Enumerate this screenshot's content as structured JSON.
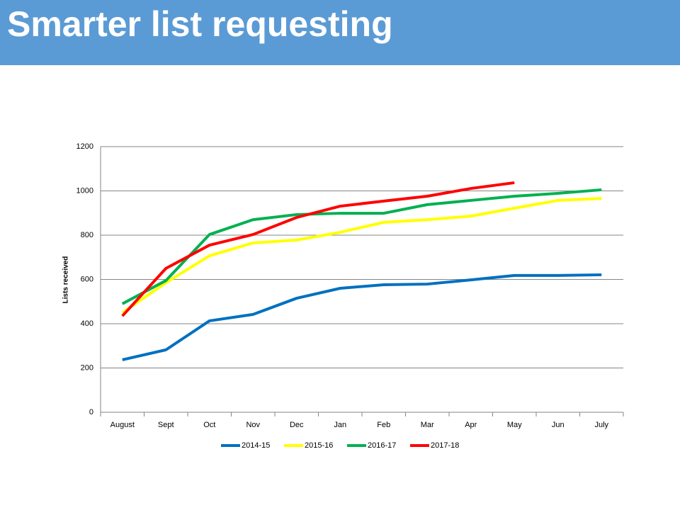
{
  "title": "Smarter list requesting",
  "chart_data": {
    "type": "line",
    "ylabel": "Lists received",
    "categories": [
      "August",
      "Sept",
      "Oct",
      "Nov",
      "Dec",
      "Jan",
      "Feb",
      "Mar",
      "Apr",
      "May",
      "Jun",
      "July"
    ],
    "series": [
      {
        "name": "2014-15",
        "color": "#0070c0",
        "values": [
          237,
          282,
          413,
          442,
          515,
          560,
          576,
          579,
          598,
          618,
          618,
          621
        ]
      },
      {
        "name": "2015-16",
        "color": "#ffff00",
        "values": [
          450,
          585,
          707,
          765,
          778,
          813,
          858,
          870,
          886,
          922,
          957,
          966
        ]
      },
      {
        "name": "2016-17",
        "color": "#00b050",
        "values": [
          490,
          595,
          803,
          870,
          893,
          899,
          899,
          938,
          957,
          976,
          989,
          1005
        ]
      },
      {
        "name": "2017-18",
        "color": "#ff0000",
        "values": [
          435,
          650,
          755,
          803,
          880,
          931,
          954,
          976,
          1011,
          1037,
          null,
          null
        ]
      }
    ],
    "ylim": [
      0,
      1200
    ],
    "yticks": [
      0,
      200,
      400,
      600,
      800,
      1000,
      1200
    ],
    "grid": true,
    "legend": "bottom"
  }
}
